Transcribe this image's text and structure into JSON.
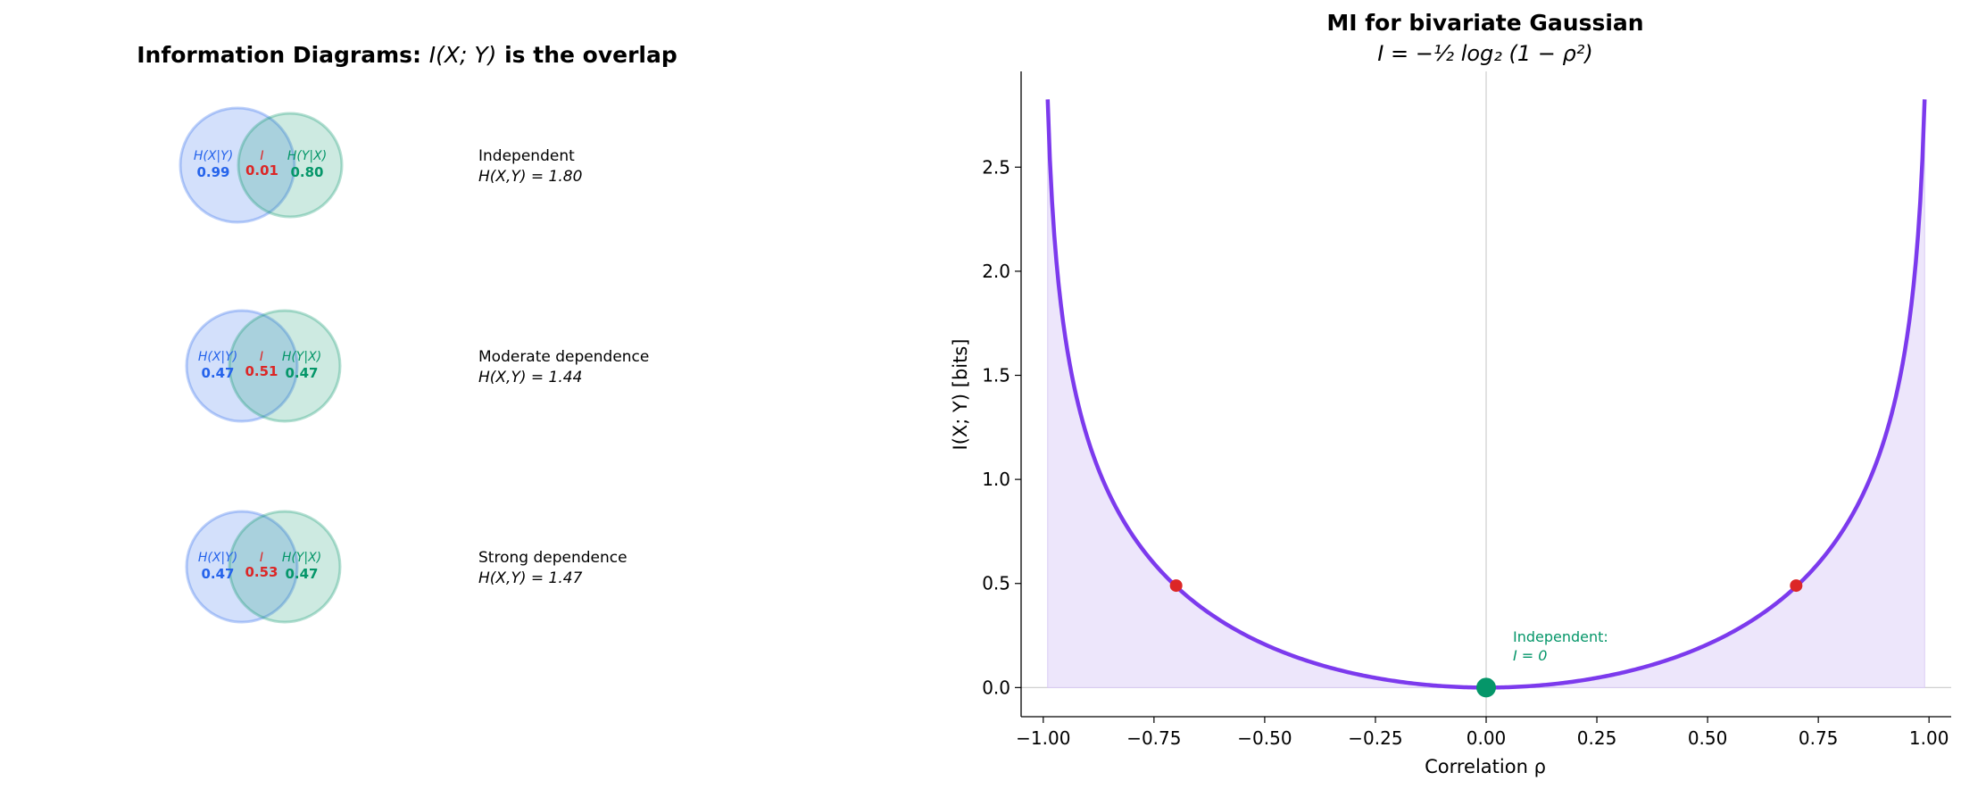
{
  "colors": {
    "x_circle": "#2563eb",
    "y_circle": "#059669",
    "mi": "#dc2626",
    "curve": "#7c3aed",
    "fill": "#ede6fb",
    "zero_marker": "#059669"
  },
  "left_panel": {
    "title_prefix": "Information Diagrams: ",
    "title_math": "I(X; Y)",
    "title_suffix": " is the overlap",
    "diagrams": [
      {
        "label_hx": "H(X|Y)",
        "label_i": "I",
        "label_hy": "H(Y|X)",
        "hx": "0.99",
        "mi": "0.01",
        "hy": "0.80",
        "desc": "Independent",
        "joint_label": "H(X,Y) = 1.80"
      },
      {
        "label_hx": "H(X|Y)",
        "label_i": "I",
        "label_hy": "H(Y|X)",
        "hx": "0.47",
        "mi": "0.51",
        "hy": "0.47",
        "desc": "Moderate dependence",
        "joint_label": "H(X,Y) = 1.44"
      },
      {
        "label_hx": "H(X|Y)",
        "label_i": "I",
        "label_hy": "H(Y|X)",
        "hx": "0.47",
        "mi": "0.53",
        "hy": "0.47",
        "desc": "Strong dependence",
        "joint_label": "H(X,Y) = 1.47"
      }
    ]
  },
  "chart_data": {
    "type": "line",
    "title": "MI for bivariate Gaussian",
    "subtitle": "I = −½ log₂ (1 − ρ²)",
    "xlabel": "Correlation ρ",
    "ylabel": "I(X; Y) [bits]",
    "xlim": [
      -1.05,
      1.05
    ],
    "ylim": [
      -0.14,
      2.96
    ],
    "xticks": [
      -1.0,
      -0.75,
      -0.5,
      -0.25,
      0.0,
      0.25,
      0.5,
      0.75,
      1.0
    ],
    "xtick_labels": [
      "−1.00",
      "−0.75",
      "−0.50",
      "−0.25",
      "0.00",
      "0.25",
      "0.50",
      "0.75",
      "1.00"
    ],
    "yticks": [
      0.0,
      0.5,
      1.0,
      1.5,
      2.0,
      2.5
    ],
    "ytick_labels": [
      "0.0",
      "0.5",
      "1.0",
      "1.5",
      "2.0",
      "2.5"
    ],
    "curve_rho_range": [
      -0.99,
      0.99
    ],
    "highlight_points": [
      {
        "rho": -0.7,
        "mi": 0.49
      },
      {
        "rho": 0.7,
        "mi": 0.49
      }
    ],
    "zero_point": {
      "rho": 0.0,
      "mi": 0.0
    },
    "annotation_line1": "Independent:",
    "annotation_line2": "I = 0",
    "grid": false,
    "reference_lines": {
      "vertical_x": 0.0,
      "horizontal_y": 0.0
    }
  }
}
